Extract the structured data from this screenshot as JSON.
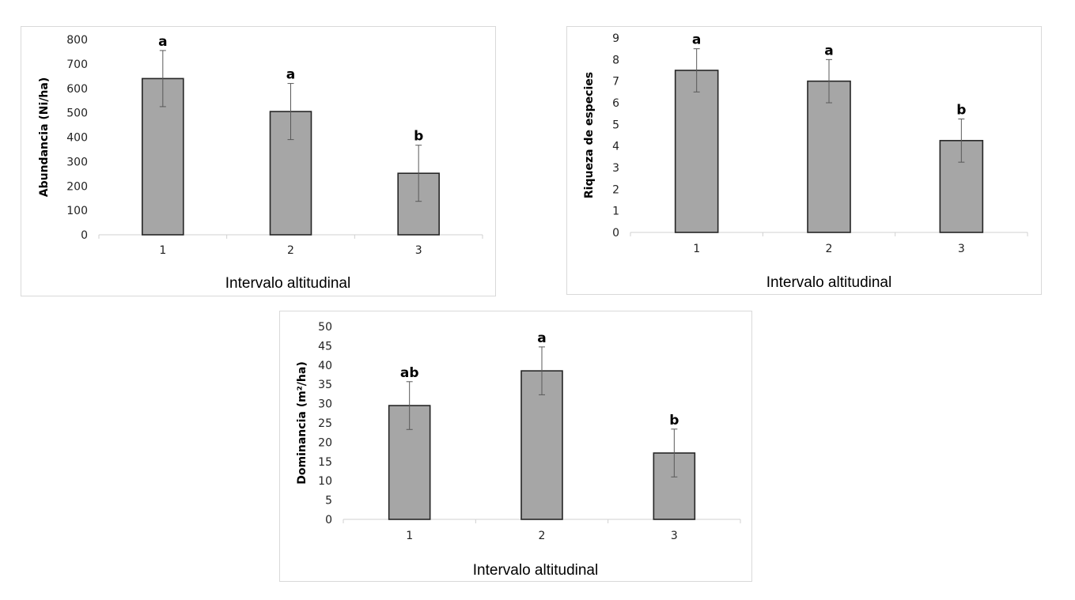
{
  "chart_data": [
    {
      "type": "bar",
      "categories": [
        "1",
        "2",
        "3"
      ],
      "values": [
        640,
        505,
        252
      ],
      "errors": [
        115,
        115,
        115
      ],
      "significance": [
        "a",
        "a",
        "b"
      ],
      "xlabel": "Intervalo altitudinal",
      "ylabel": "Abundancia  (Ni/ha)",
      "ylim": [
        0,
        800
      ],
      "yticks": [
        0,
        100,
        200,
        300,
        400,
        500,
        600,
        700,
        800
      ],
      "bar_color": "#a6a6a6"
    },
    {
      "type": "bar",
      "categories": [
        "1",
        "2",
        "3"
      ],
      "values": [
        7.5,
        7.0,
        4.25
      ],
      "errors": [
        1.0,
        1.0,
        1.0
      ],
      "significance": [
        "a",
        "a",
        "b"
      ],
      "xlabel": "Intervalo altitudinal",
      "ylabel": "Riqueza de especies",
      "ylim": [
        0,
        9
      ],
      "yticks": [
        0,
        1,
        2,
        3,
        4,
        5,
        6,
        7,
        8,
        9
      ],
      "bar_color": "#a6a6a6"
    },
    {
      "type": "bar",
      "categories": [
        "1",
        "2",
        "3"
      ],
      "values": [
        29.5,
        38.5,
        17.2
      ],
      "errors": [
        6.2,
        6.2,
        6.2
      ],
      "significance": [
        "ab",
        "a",
        "b"
      ],
      "xlabel": "Intervalo altitudinal",
      "ylabel": "Dominancia (m²/ha)",
      "ylim": [
        0,
        50
      ],
      "yticks": [
        0,
        5,
        10,
        15,
        20,
        25,
        30,
        35,
        40,
        45,
        50
      ],
      "bar_color": "#a6a6a6"
    }
  ]
}
